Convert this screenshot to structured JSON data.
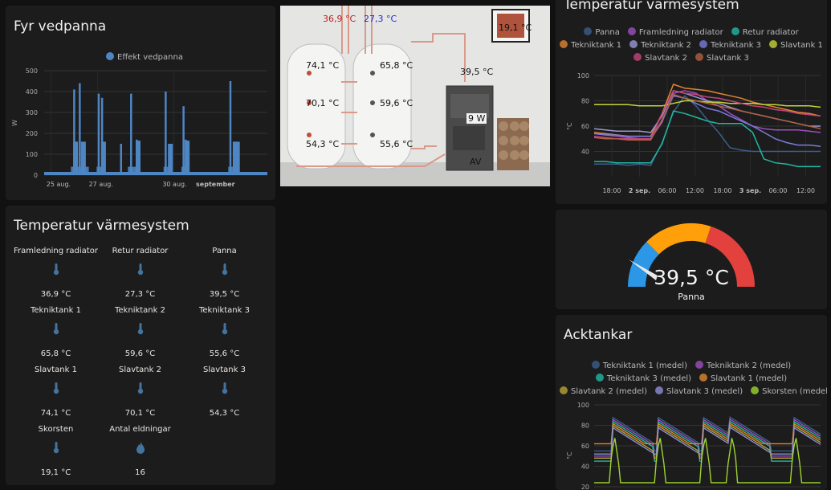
{
  "fyr": {
    "title": "Fyr vedpanna",
    "chart_data": {
      "type": "bar",
      "title": "Fyr vedpanna",
      "legend": [
        "Effekt vedpanna"
      ],
      "ylabel": "W",
      "ylim": [
        0,
        500
      ],
      "yticks": [
        "500",
        "400",
        "300",
        "200",
        "100",
        "0"
      ],
      "xticks": [
        "25 aug.",
        "27 aug.",
        "30 aug.",
        "september"
      ],
      "series": [
        {
          "name": "Effekt vedpanna",
          "color": "#4e86c4",
          "peaks": [
            [
              0.13,
              410
            ],
            [
              0.14,
              160
            ],
            [
              0.155,
              440
            ],
            [
              0.17,
              160
            ],
            [
              0.24,
              390
            ],
            [
              0.255,
              370
            ],
            [
              0.26,
              160
            ],
            [
              0.34,
              150
            ],
            [
              0.385,
              390
            ],
            [
              0.41,
              170
            ],
            [
              0.54,
              400
            ],
            [
              0.555,
              150
            ],
            [
              0.62,
              330
            ],
            [
              0.63,
              170
            ],
            [
              0.83,
              450
            ],
            [
              0.85,
              160
            ]
          ]
        }
      ]
    }
  },
  "tempsys": {
    "title": "Temperatur värmesystem",
    "rows": [
      [
        {
          "name": "Framledning radiator",
          "value": "36,9 °C",
          "icon": "thermometer-icon"
        },
        {
          "name": "Retur radiator",
          "value": "27,3 °C",
          "icon": "thermometer-icon"
        },
        {
          "name": "Panna",
          "value": "39,5 °C",
          "icon": "thermometer-icon"
        }
      ],
      [
        {
          "name": "Tekniktank 1",
          "value": "65,8 °C",
          "icon": "thermometer-icon"
        },
        {
          "name": "Tekniktank 2",
          "value": "59,6 °C",
          "icon": "thermometer-icon"
        },
        {
          "name": "Tekniktank 3",
          "value": "55,6 °C",
          "icon": "thermometer-icon"
        }
      ],
      [
        {
          "name": "Slavtank 1",
          "value": "74,1 °C",
          "icon": "thermometer-icon"
        },
        {
          "name": "Slavtank 2",
          "value": "70,1 °C",
          "icon": "thermometer-icon"
        },
        {
          "name": "Slavtank 3",
          "value": "54,3 °C",
          "icon": "thermometer-icon"
        }
      ],
      [
        {
          "name": "Skorsten",
          "value": "19,1 °C",
          "icon": "thermometer-icon"
        },
        {
          "name": "Antal eldningar",
          "value": "16",
          "icon": "fire-icon"
        }
      ]
    ]
  },
  "diagram": {
    "top_hot": "36,9 °C",
    "top_cold": "27,3 °C",
    "chimney": "19,1 °C",
    "t1": "74,1 °C",
    "t2": "70,1 °C",
    "t3": "54,3 °C",
    "t4": "65,8 °C",
    "t5": "59,6 °C",
    "t6": "55,6 °C",
    "boiler_temp": "39,5 °C",
    "boiler_power": "9 W",
    "boiler_state": "AV"
  },
  "tempchart": {
    "title": "Temperatur värmesystem",
    "chart_data": {
      "type": "line",
      "ylabel": "°C",
      "ylim": [
        20,
        100
      ],
      "yticks": [
        "100",
        "80",
        "60",
        "40"
      ],
      "xticks": [
        "18:00",
        "2 sep.",
        "06:00",
        "12:00",
        "18:00",
        "3 sep.",
        "06:00",
        "12:00"
      ],
      "series": [
        {
          "name": "Panna",
          "color": "#3b5f8a",
          "values": [
            30,
            30,
            30,
            29,
            30,
            29,
            47,
            71,
            84,
            76,
            65,
            55,
            43,
            41,
            40,
            40,
            40,
            40,
            40,
            40,
            40
          ]
        },
        {
          "name": "Framledning radiator",
          "color": "#9c4fc0",
          "values": [
            55,
            53,
            52,
            51,
            50,
            50,
            63,
            86,
            88,
            86,
            80,
            76,
            70,
            65,
            60,
            58,
            57,
            57,
            57,
            56,
            55
          ]
        },
        {
          "name": "Retur radiator",
          "color": "#1fb8a3",
          "values": [
            32,
            32,
            31,
            31,
            31,
            31,
            46,
            72,
            70,
            67,
            64,
            62,
            62,
            62,
            55,
            34,
            31,
            30,
            28,
            28,
            28
          ]
        },
        {
          "name": "Tekniktank 1",
          "color": "#e0862f",
          "values": [
            55,
            54,
            53,
            52,
            52,
            52,
            70,
            93,
            90,
            89,
            88,
            86,
            84,
            82,
            79,
            77,
            75,
            73,
            71,
            70,
            68
          ]
        },
        {
          "name": "Tekniktank 2",
          "color": "#9a9ad6",
          "values": [
            58,
            57,
            56,
            56,
            56,
            55,
            68,
            88,
            86,
            83,
            80,
            78,
            75,
            72,
            70,
            68,
            66,
            64,
            62,
            60,
            60
          ]
        },
        {
          "name": "Tekniktank 3",
          "color": "#7b7bdc",
          "values": [
            54,
            53,
            53,
            52,
            52,
            52,
            64,
            84,
            82,
            78,
            74,
            72,
            68,
            64,
            60,
            55,
            50,
            47,
            45,
            45,
            44
          ]
        },
        {
          "name": "Slavtank 1",
          "color": "#c5d337",
          "values": [
            77,
            77,
            77,
            77,
            76,
            76,
            76,
            78,
            80,
            80,
            79,
            79,
            78,
            78,
            78,
            77,
            77,
            76,
            76,
            76,
            75
          ]
        },
        {
          "name": "Slavtank 2",
          "color": "#c4447a",
          "values": [
            52,
            51,
            50,
            50,
            50,
            50,
            70,
            88,
            86,
            85,
            83,
            82,
            80,
            78,
            76,
            75,
            73,
            72,
            70,
            69,
            68
          ]
        },
        {
          "name": "Slavtank 3",
          "color": "#b06040",
          "values": [
            51,
            50,
            50,
            49,
            49,
            49,
            65,
            85,
            82,
            80,
            78,
            76,
            74,
            72,
            70,
            68,
            66,
            64,
            62,
            60,
            58
          ]
        }
      ]
    }
  },
  "gauge": {
    "value_text": "39,5 °C",
    "label": "Panna",
    "value": 39.5,
    "min": 0,
    "max": 100,
    "colors": {
      "low": "#2b97e6",
      "mid": "#ff9f0a",
      "high": "#e2413d"
    }
  },
  "acktankar": {
    "title": "Acktankar",
    "chart_data": {
      "type": "line",
      "ylabel": "°C",
      "ylim": [
        20,
        100
      ],
      "yticks": [
        "100",
        "80",
        "60",
        "40",
        "20"
      ],
      "series": [
        {
          "name": "Tekniktank 1 (medel)",
          "color": "#3b5f8a"
        },
        {
          "name": "Tekniktank 2 (medel)",
          "color": "#9c4fc0"
        },
        {
          "name": "Tekniktank 3 (medel)",
          "color": "#1fb8a3"
        },
        {
          "name": "Slavtank 1 (medel)",
          "color": "#e0862f"
        },
        {
          "name": "Slavtank 2 (medel)",
          "color": "#b8a234"
        },
        {
          "name": "Slavtank 3 (medel)",
          "color": "#8d8dd8"
        },
        {
          "name": "Skorsten (medel)",
          "color": "#9dd42f"
        }
      ]
    }
  }
}
